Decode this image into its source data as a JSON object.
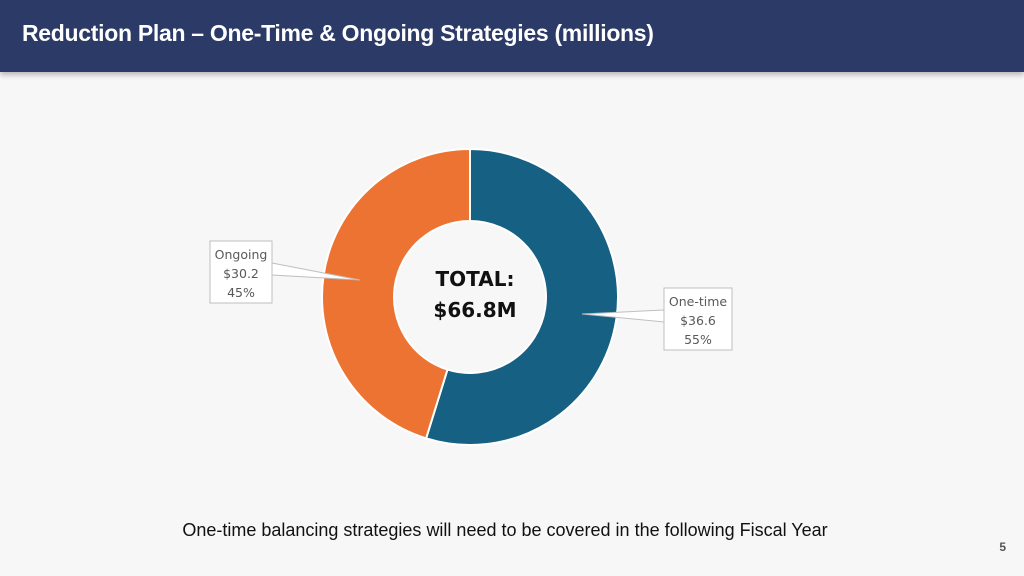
{
  "header": {
    "title": "Reduction Plan – One-Time & Ongoing Strategies (millions)"
  },
  "chart_data": {
    "type": "pie",
    "variant": "donut",
    "title": "",
    "center_label": {
      "line1": "TOTAL:",
      "line2": "$66.8M"
    },
    "series": [
      {
        "name": "Ongoing",
        "value_label": "$30.2",
        "percent_label": "45%",
        "value": 30.2,
        "percent": 45,
        "color": "#ec7332"
      },
      {
        "name": "One-time",
        "value_label": "$36.6",
        "percent_label": "55%",
        "value": 36.6,
        "percent": 55,
        "color": "#166083"
      }
    ]
  },
  "footer": {
    "note": "One-time balancing strategies will need to be covered in the following Fiscal Year",
    "page_number": "5"
  }
}
